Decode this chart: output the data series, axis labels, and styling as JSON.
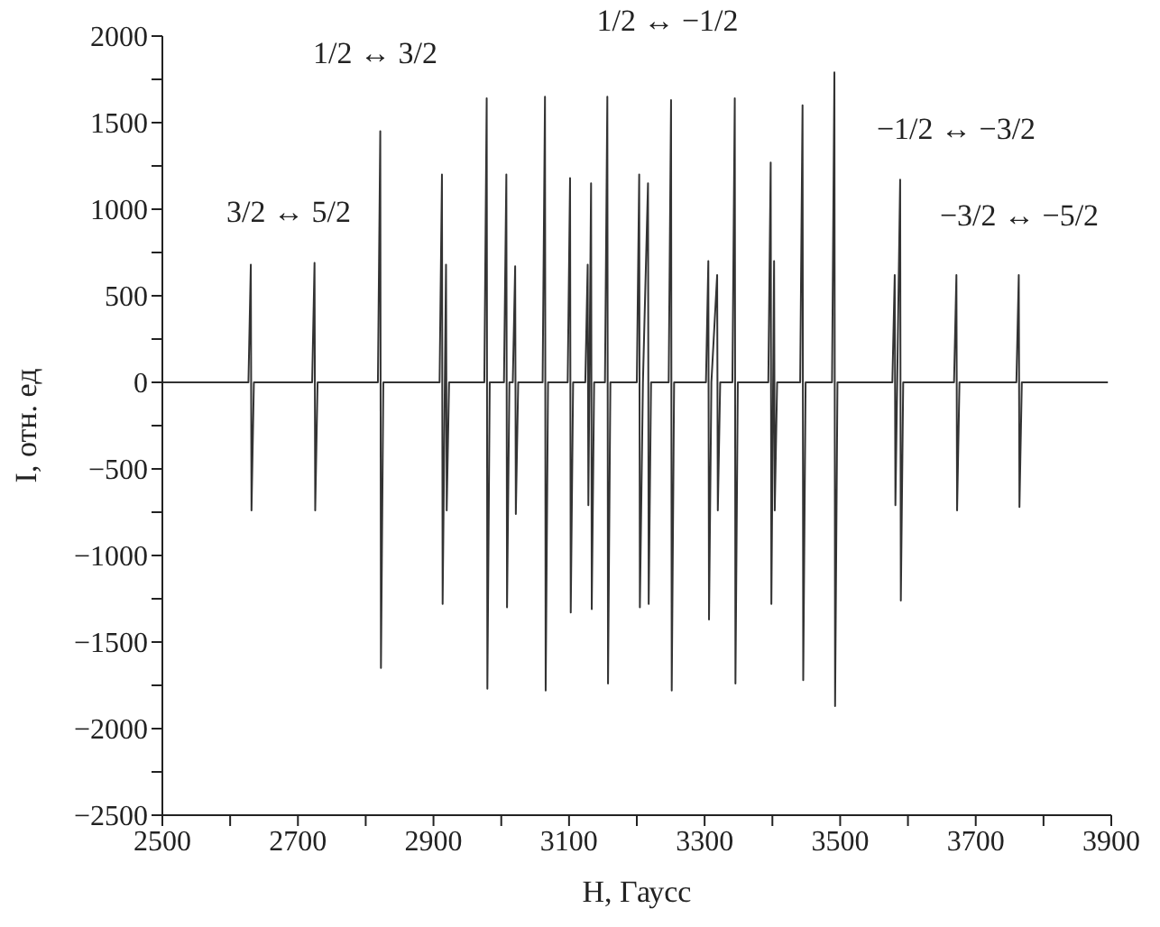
{
  "chart_data": {
    "type": "line",
    "xlabel": "H, Гаусс",
    "ylabel": "I, отн. ед",
    "x": [
      2500,
      2627,
      2630.5,
      2631.5,
      2635,
      2721,
      2724.5,
      2725.5,
      2729,
      2818,
      2821.5,
      2822.5,
      2826,
      2909,
      2912.5,
      2913.5,
      2918.5,
      2919.5,
      2923,
      2975,
      2978.5,
      2979.5,
      2983,
      3004,
      3007.5,
      3008.5,
      3012,
      3017,
      3020.5,
      3021.5,
      3025,
      3061,
      3064.5,
      3065.5,
      3069,
      3098,
      3101.5,
      3102.5,
      3106,
      3124,
      3127.5,
      3128.5,
      3132.5,
      3133.5,
      3137,
      3153,
      3156.5,
      3157.5,
      3161,
      3200,
      3203.5,
      3204.5,
      3209,
      3216.5,
      3217.5,
      3221,
      3247,
      3250.5,
      3251.5,
      3255,
      3302,
      3305.5,
      3306.5,
      3310,
      3318.5,
      3319.5,
      3323,
      3341,
      3344.5,
      3345.5,
      3349,
      3394,
      3397.5,
      3398.5,
      3402.5,
      3403.5,
      3407,
      3441,
      3444.5,
      3445.5,
      3449,
      3488,
      3491.5,
      3492.5,
      3496,
      3577,
      3580.5,
      3581.5,
      3588.5,
      3589.5,
      3593,
      3668,
      3671.5,
      3672.5,
      3676,
      3760,
      3763.5,
      3764.5,
      3768,
      3895
    ],
    "series": [
      {
        "color": "#333333",
        "values": [
          0,
          0,
          680,
          -740,
          0,
          0,
          690,
          -740,
          0,
          0,
          1450,
          -1650,
          0,
          0,
          1200,
          -1280,
          680,
          -740,
          0,
          0,
          1640,
          -1770,
          0,
          0,
          1200,
          -1300,
          0,
          0,
          670,
          -760,
          0,
          0,
          1650,
          -1780,
          0,
          0,
          1180,
          -1330,
          0,
          0,
          680,
          -710,
          1150,
          -1310,
          0,
          0,
          1650,
          -1740,
          0,
          0,
          1200,
          -1300,
          0,
          1150,
          -1280,
          0,
          0,
          1630,
          -1780,
          0,
          0,
          700,
          -1370,
          0,
          620,
          -740,
          0,
          0,
          1640,
          -1740,
          0,
          0,
          1270,
          -1280,
          700,
          -740,
          0,
          0,
          1600,
          -1720,
          0,
          0,
          1790,
          -1870,
          0,
          0,
          620,
          -710,
          1170,
          -1260,
          0,
          0,
          620,
          -740,
          0,
          0,
          620,
          -720,
          0,
          0
        ]
      }
    ],
    "xlim": [
      2500,
      3900
    ],
    "xticks": [
      2500,
      {
        "value": 2600,
        "label": null
      },
      2700,
      {
        "value": 2800,
        "label": null
      },
      2900,
      {
        "value": 3000,
        "label": null
      },
      3100,
      {
        "value": 3200,
        "label": null
      },
      3300,
      {
        "value": 3400,
        "label": null
      },
      3500,
      {
        "value": 3600,
        "label": null
      },
      3700,
      {
        "value": 3800,
        "label": null
      },
      3900
    ],
    "ylim": [
      -2500,
      2000
    ],
    "yticks": [
      -2500,
      {
        "value": -2250,
        "label": null
      },
      -2000,
      {
        "value": -1750,
        "label": null
      },
      -1500,
      {
        "value": -1250,
        "label": null
      },
      -1000,
      {
        "value": -750,
        "label": null
      },
      -500,
      {
        "value": -250,
        "label": null
      },
      0,
      {
        "value": 250,
        "label": null
      },
      500,
      {
        "value": 750,
        "label": null
      },
      1000,
      {
        "value": 1250,
        "label": null
      },
      1500,
      {
        "value": 1750,
        "label": null
      },
      2000
    ],
    "annotations": [
      "1/2 ↔ 3/2",
      "1/2 ↔ −1/2",
      "−1/2 ↔ −3/2",
      "−3/2 ↔ −5/2",
      "3/2 ↔ 5/2"
    ]
  }
}
